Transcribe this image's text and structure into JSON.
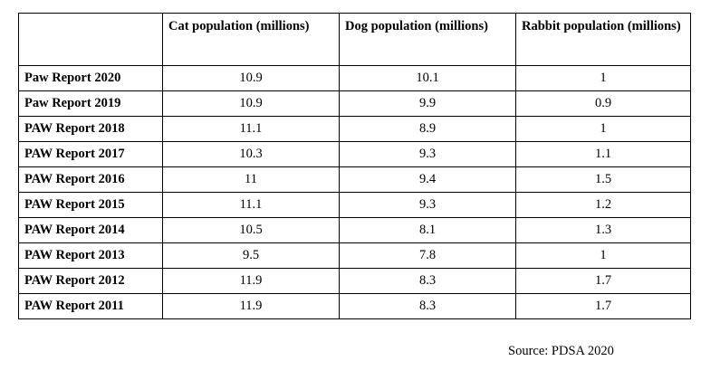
{
  "table": {
    "headers": [
      "",
      "Cat population (millions)",
      "Dog population (millions)",
      "Rabbit population (millions)"
    ],
    "rows": [
      {
        "label": "Paw Report 2020",
        "cat": "10.9",
        "dog": "10.1",
        "rabbit": "1"
      },
      {
        "label": "Paw Report 2019",
        "cat": "10.9",
        "dog": "9.9",
        "rabbit": "0.9"
      },
      {
        "label": "PAW Report 2018",
        "cat": "11.1",
        "dog": "8.9",
        "rabbit": "1"
      },
      {
        "label": "PAW Report 2017",
        "cat": "10.3",
        "dog": "9.3",
        "rabbit": "1.1"
      },
      {
        "label": "PAW Report 2016",
        "cat": "11",
        "dog": "9.4",
        "rabbit": "1.5"
      },
      {
        "label": "PAW Report 2015",
        "cat": "11.1",
        "dog": "9.3",
        "rabbit": "1.2"
      },
      {
        "label": "PAW Report 2014",
        "cat": "10.5",
        "dog": "8.1",
        "rabbit": "1.3"
      },
      {
        "label": "PAW Report 2013",
        "cat": "9.5",
        "dog": "7.8",
        "rabbit": "1"
      },
      {
        "label": "PAW Report 2012",
        "cat": "11.9",
        "dog": "8.3",
        "rabbit": "1.7"
      },
      {
        "label": "PAW Report 2011",
        "cat": "11.9",
        "dog": "8.3",
        "rabbit": "1.7"
      }
    ]
  },
  "source": "Source: PDSA 2020"
}
